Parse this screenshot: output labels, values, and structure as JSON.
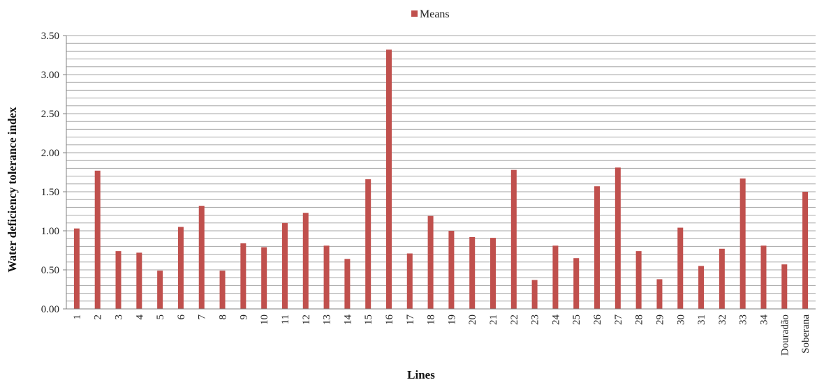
{
  "chart_data": {
    "type": "bar",
    "title": "",
    "xlabel": "Lines",
    "ylabel": "Water deficiency tolerance index",
    "ylim": [
      0,
      3.5
    ],
    "y_major_step": 0.5,
    "y_minor_step": 0.1,
    "grid": true,
    "legend_position": "top-center",
    "bar_color": "#c0504d",
    "categories": [
      "1",
      "2",
      "3",
      "4",
      "5",
      "6",
      "7",
      "8",
      "9",
      "10",
      "11",
      "12",
      "13",
      "14",
      "15",
      "16",
      "17",
      "18",
      "19",
      "20",
      "21",
      "22",
      "23",
      "24",
      "25",
      "26",
      "27",
      "28",
      "29",
      "30",
      "31",
      "32",
      "33",
      "34",
      "Douradão",
      "Soberana"
    ],
    "series": [
      {
        "name": "Means",
        "values": [
          1.03,
          1.77,
          0.74,
          0.72,
          0.49,
          1.05,
          1.32,
          0.49,
          0.84,
          0.79,
          1.1,
          1.23,
          0.81,
          0.64,
          1.66,
          3.32,
          0.71,
          1.19,
          1.0,
          0.92,
          0.91,
          1.78,
          0.37,
          0.81,
          0.65,
          1.57,
          1.81,
          0.74,
          0.38,
          1.04,
          0.55,
          0.77,
          1.67,
          0.81,
          0.57,
          1.5
        ]
      }
    ],
    "y_tick_labels": [
      "0.00",
      "0.50",
      "1.00",
      "1.50",
      "2.00",
      "2.50",
      "3.00",
      "3.50"
    ]
  }
}
